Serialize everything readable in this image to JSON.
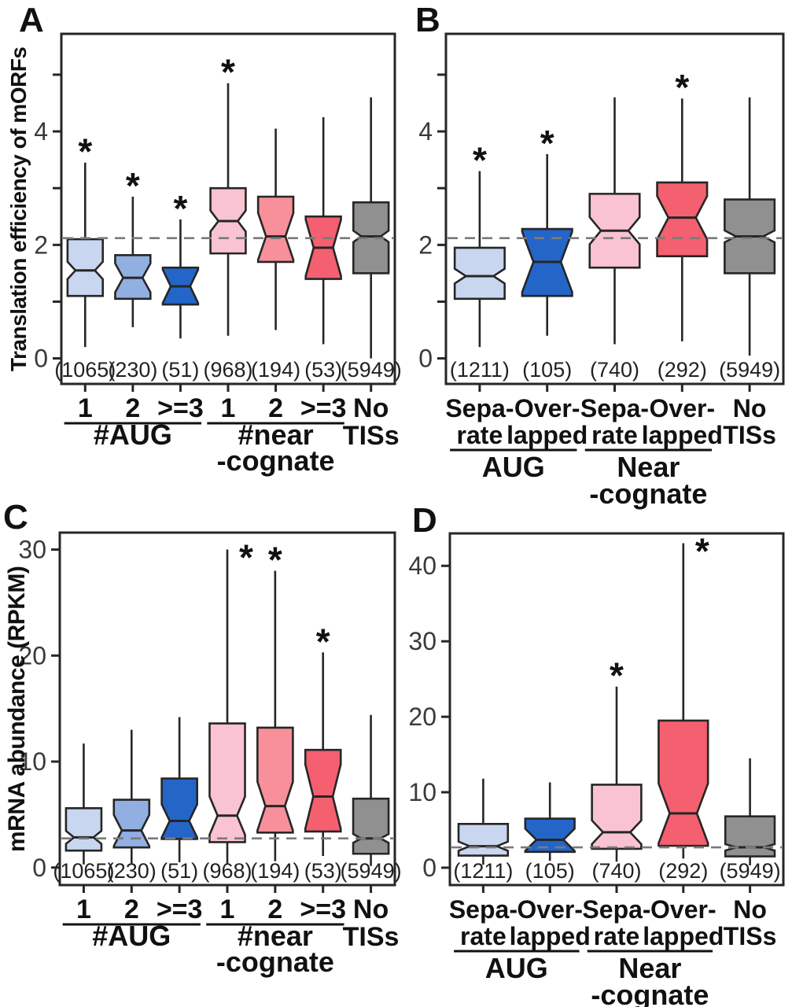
{
  "figure_background": "#ffffff",
  "ink_color": "#262626",
  "dash_color": "#7a7a7a",
  "tick_text_color": "#3a3a3a",
  "label_text_color": "#111111",
  "star_symbol": "*",
  "chart_data": [
    {
      "type": "box",
      "letter": "A",
      "ylabel": "Translation efficiency of mORFs",
      "ylim": [
        -0.45,
        5.72
      ],
      "yticks": [
        {
          "v": 0,
          "label": "0"
        },
        {
          "v": 1,
          "label": ""
        },
        {
          "v": 2,
          "label": "2"
        },
        {
          "v": 3,
          "label": ""
        },
        {
          "v": 4,
          "label": "4"
        },
        {
          "v": 5,
          "label": ""
        }
      ],
      "dashed_line_y": 2.12,
      "boxes": [
        {
          "tick_label": [
            "1"
          ],
          "count": "(1065)",
          "color": "#c9d6f0",
          "whisker_low": 0.2,
          "q1": 1.1,
          "median": 1.55,
          "q3": 2.1,
          "whisker_high": 3.45,
          "star": true
        },
        {
          "tick_label": [
            "2"
          ],
          "count": "(230)",
          "color": "#92afe2",
          "whisker_low": 0.55,
          "q1": 1.05,
          "median": 1.42,
          "q3": 1.82,
          "whisker_high": 2.85,
          "star": true
        },
        {
          "tick_label": [
            ">=3"
          ],
          "count": "(51)",
          "color": "#2465c8",
          "whisker_low": 0.35,
          "q1": 0.95,
          "median": 1.27,
          "q3": 1.6,
          "whisker_high": 2.45,
          "star": true
        },
        {
          "tick_label": [
            "1"
          ],
          "count": "(968)",
          "color": "#f9c3d1",
          "whisker_low": 0.4,
          "q1": 1.85,
          "median": 2.42,
          "q3": 3.0,
          "whisker_high": 4.85,
          "star": true
        },
        {
          "tick_label": [
            "2"
          ],
          "count": "(194)",
          "color": "#f7909a",
          "whisker_low": 0.5,
          "q1": 1.7,
          "median": 2.15,
          "q3": 2.85,
          "whisker_high": 4.05,
          "star": false
        },
        {
          "tick_label": [
            ">=3"
          ],
          "count": "(53)",
          "color": "#f4606f",
          "whisker_low": 0.25,
          "q1": 1.4,
          "median": 1.95,
          "q3": 2.5,
          "whisker_high": 4.25,
          "star": false
        },
        {
          "tick_label": [
            "No",
            "TISs"
          ],
          "count": "(5949)",
          "color": "#909090",
          "whisker_low": 0.0,
          "q1": 1.5,
          "median": 2.15,
          "q3": 2.75,
          "whisker_high": 4.6,
          "star": false
        }
      ],
      "groups": [
        {
          "label_lines": [
            "#AUG"
          ],
          "from": 0,
          "to": 2
        },
        {
          "label_lines": [
            "#near",
            "-cognate"
          ],
          "from": 3,
          "to": 5
        }
      ]
    },
    {
      "type": "box",
      "letter": "B",
      "ylabel": "",
      "ylim": [
        -0.45,
        5.72
      ],
      "yticks": [
        {
          "v": 0,
          "label": "0"
        },
        {
          "v": 1,
          "label": ""
        },
        {
          "v": 2,
          "label": "2"
        },
        {
          "v": 3,
          "label": ""
        },
        {
          "v": 4,
          "label": "4"
        },
        {
          "v": 5,
          "label": ""
        }
      ],
      "dashed_line_y": 2.12,
      "boxes": [
        {
          "tick_label": [
            "Sepa-",
            "rate"
          ],
          "count": "(1211)",
          "color": "#c9d6f0",
          "whisker_low": 0.2,
          "q1": 1.05,
          "median": 1.45,
          "q3": 1.95,
          "whisker_high": 3.3,
          "star": true
        },
        {
          "tick_label": [
            "Over-",
            "lapped"
          ],
          "count": "(105)",
          "color": "#2465c8",
          "whisker_low": 0.4,
          "q1": 1.1,
          "median": 1.7,
          "q3": 2.28,
          "whisker_high": 3.6,
          "star": true
        },
        {
          "tick_label": [
            "Sepa-",
            "rate"
          ],
          "count": "(740)",
          "color": "#f9c3d1",
          "whisker_low": 0.25,
          "q1": 1.6,
          "median": 2.25,
          "q3": 2.9,
          "whisker_high": 4.6,
          "star": false
        },
        {
          "tick_label": [
            "Over-",
            "lapped"
          ],
          "count": "(292)",
          "color": "#f4606f",
          "whisker_low": 0.3,
          "q1": 1.8,
          "median": 2.48,
          "q3": 3.1,
          "whisker_high": 4.58,
          "star": true
        },
        {
          "tick_label": [
            "No",
            "TISs"
          ],
          "count": "(5949)",
          "color": "#909090",
          "whisker_low": 0.05,
          "q1": 1.5,
          "median": 2.15,
          "q3": 2.8,
          "whisker_high": 4.6,
          "star": false
        }
      ],
      "groups": [
        {
          "label_lines": [
            "AUG"
          ],
          "from": 0,
          "to": 1
        },
        {
          "label_lines": [
            "Near",
            "-cognate"
          ],
          "from": 2,
          "to": 3
        }
      ]
    },
    {
      "type": "box",
      "letter": "C",
      "ylabel": "mRNA abundance (RPKM)",
      "ylim": [
        -1.65,
        31.6
      ],
      "yticks": [
        {
          "v": 0,
          "label": "0"
        },
        {
          "v": 10,
          "label": "10"
        },
        {
          "v": 20,
          "label": "20"
        },
        {
          "v": 30,
          "label": "30"
        }
      ],
      "dashed_line_y": 2.75,
      "boxes": [
        {
          "tick_label": [
            "1"
          ],
          "count": "(1065)",
          "color": "#c9d6f0",
          "whisker_low": 0.3,
          "q1": 1.6,
          "median": 2.85,
          "q3": 5.6,
          "whisker_high": 11.7,
          "star": false
        },
        {
          "tick_label": [
            "2"
          ],
          "count": "(230)",
          "color": "#92afe2",
          "whisker_low": 0.4,
          "q1": 1.9,
          "median": 3.5,
          "q3": 6.4,
          "whisker_high": 13.0,
          "star": false
        },
        {
          "tick_label": [
            ">=3"
          ],
          "count": "(51)",
          "color": "#2465c8",
          "whisker_low": 0.5,
          "q1": 2.7,
          "median": 4.4,
          "q3": 8.4,
          "whisker_high": 14.2,
          "star": false
        },
        {
          "tick_label": [
            "1"
          ],
          "count": "(968)",
          "color": "#f9c3d1",
          "whisker_low": 0.4,
          "q1": 2.4,
          "median": 4.9,
          "q3": 13.6,
          "whisker_high": 30.0,
          "star": true
        },
        {
          "tick_label": [
            "2"
          ],
          "count": "(194)",
          "color": "#f7909a",
          "whisker_low": 0.6,
          "q1": 3.3,
          "median": 5.8,
          "q3": 13.2,
          "whisker_high": 28.0,
          "star": true
        },
        {
          "tick_label": [
            ">=3"
          ],
          "count": "(53)",
          "color": "#f4606f",
          "whisker_low": 1.1,
          "q1": 3.4,
          "median": 6.7,
          "q3": 11.1,
          "whisker_high": 20.3,
          "star": true
        },
        {
          "tick_label": [
            "No",
            "TISs"
          ],
          "count": "(5949)",
          "color": "#909090",
          "whisker_low": 0.15,
          "q1": 1.3,
          "median": 2.75,
          "q3": 6.5,
          "whisker_high": 14.4,
          "star": false
        }
      ],
      "groups": [
        {
          "label_lines": [
            "#AUG"
          ],
          "from": 0,
          "to": 2
        },
        {
          "label_lines": [
            "#near",
            "-cognate"
          ],
          "from": 3,
          "to": 5
        }
      ]
    },
    {
      "type": "box",
      "letter": "D",
      "ylabel": "",
      "ylim": [
        -2.3,
        44.3
      ],
      "yticks": [
        {
          "v": 0,
          "label": "0"
        },
        {
          "v": 10,
          "label": "10"
        },
        {
          "v": 20,
          "label": "20"
        },
        {
          "v": 30,
          "label": "30"
        },
        {
          "v": 40,
          "label": "40"
        }
      ],
      "dashed_line_y": 2.7,
      "boxes": [
        {
          "tick_label": [
            "Sepa-",
            "rate"
          ],
          "count": "(1211)",
          "color": "#c9d6f0",
          "whisker_low": 0.4,
          "q1": 1.6,
          "median": 2.85,
          "q3": 5.8,
          "whisker_high": 11.8,
          "star": false
        },
        {
          "tick_label": [
            "Over-",
            "lapped"
          ],
          "count": "(105)",
          "color": "#2465c8",
          "whisker_low": 0.9,
          "q1": 2.1,
          "median": 3.7,
          "q3": 6.5,
          "whisker_high": 11.3,
          "star": false
        },
        {
          "tick_label": [
            "Sepa-",
            "rate"
          ],
          "count": "(740)",
          "color": "#f9c3d1",
          "whisker_low": 0.8,
          "q1": 2.5,
          "median": 4.7,
          "q3": 11.0,
          "whisker_high": 24.0,
          "star": true
        },
        {
          "tick_label": [
            "Over-",
            "lapped"
          ],
          "count": "(292)",
          "color": "#f4606f",
          "whisker_low": 1.2,
          "q1": 2.9,
          "median": 7.2,
          "q3": 19.5,
          "whisker_high": 43.0,
          "star": true
        },
        {
          "tick_label": [
            "No",
            "TISs"
          ],
          "count": "(5949)",
          "color": "#909090",
          "whisker_low": 0.3,
          "q1": 1.5,
          "median": 2.7,
          "q3": 6.8,
          "whisker_high": 14.5,
          "star": false
        }
      ],
      "groups": [
        {
          "label_lines": [
            "AUG"
          ],
          "from": 0,
          "to": 1
        },
        {
          "label_lines": [
            "Near",
            "-cognate"
          ],
          "from": 2,
          "to": 3
        }
      ]
    }
  ]
}
